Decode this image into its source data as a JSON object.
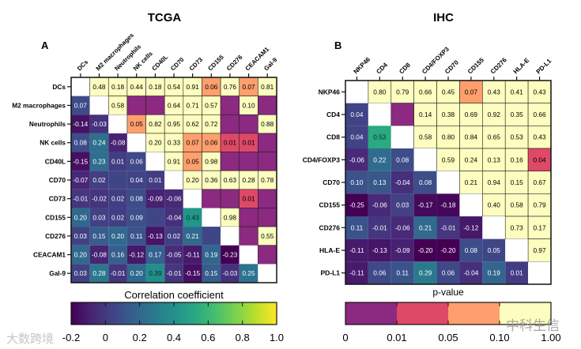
{
  "chart_data": [
    {
      "type": "heatmap",
      "panel": "A",
      "title": "TCGA",
      "labels": [
        "DCs",
        "M2 macrophages",
        "Neutrophils",
        "NK cells",
        "CD40L",
        "CD70",
        "CD73",
        "CD155",
        "CD276",
        "CEACAM1",
        "Gal-9"
      ],
      "lower_triangle": "correlation coefficient",
      "upper_triangle": "p-value",
      "matrix": [
        [
          null,
          "0.48",
          "0.18",
          "0.44",
          "0.18",
          "0.54",
          "0.91",
          "0.06",
          "0.76",
          "0.07",
          "0.81"
        ],
        [
          "0.07",
          null,
          "0.58",
          null,
          null,
          "0.64",
          "0.71",
          "0.57",
          null,
          "0.10",
          null
        ],
        [
          "-0.14",
          "-0.03",
          null,
          "0.05",
          "0.82",
          "0.95",
          "0.62",
          "0.72",
          null,
          null,
          "0.88"
        ],
        [
          "0.08",
          "0.24",
          "-0.08",
          null,
          "0.20",
          "0.33",
          "0.07",
          "0.06",
          "0.01",
          "0.01",
          null
        ],
        [
          "-0.15",
          "0.23",
          "0.01",
          "0.06",
          null,
          "0.91",
          "0.05",
          "0.98",
          null,
          null,
          null
        ],
        [
          "-0.07",
          "0.02",
          null,
          "0.04",
          "0.01",
          null,
          "0.20",
          "0.36",
          "0.63",
          "0.28",
          "0.78"
        ],
        [
          "-0.01",
          "-0.02",
          "0.02",
          "0.08",
          "-0.09",
          "-0.06",
          null,
          null,
          null,
          "0.01",
          null
        ],
        [
          "0.20",
          "0.03",
          "0.02",
          "0.09",
          null,
          "-0.04",
          "0.43",
          null,
          "0.98",
          null,
          null
        ],
        [
          "0.03",
          "0.15",
          "0.20",
          "0.11",
          "-0.13",
          "0.02",
          "0.21",
          null,
          null,
          null,
          "0.55"
        ],
        [
          "0.20",
          "-0.08",
          "0.16",
          "-0.12",
          "0.17",
          "-0.05",
          "-0.11",
          "0.19",
          "-0.23",
          null,
          null
        ],
        [
          "0.03",
          "0.28",
          "-0.01",
          "0.20",
          "0.39",
          "-0.01",
          "-0.15",
          "0.15",
          "-0.03",
          "0.25",
          null
        ]
      ],
      "colorbar": {
        "label": "Correlation coefficient",
        "range": [
          -0.2,
          1.0
        ],
        "ticks": [
          "-0.2",
          "0",
          "0.2",
          "0.4",
          "0.6",
          "0.8",
          "1.0"
        ]
      }
    },
    {
      "type": "heatmap",
      "panel": "B",
      "title": "IHC",
      "labels": [
        "NKP46",
        "CD4",
        "CD8",
        "CD4/FOXP3",
        "CD70",
        "CD155",
        "CD276",
        "HLA-E",
        "PD-L1"
      ],
      "lower_triangle": "correlation coefficient",
      "upper_triangle": "p-value",
      "matrix": [
        [
          null,
          "0.80",
          "0.79",
          "0.66",
          "0.45",
          "0.07",
          "0.43",
          "0.41",
          "0.43"
        ],
        [
          "0.04",
          null,
          null,
          "0.14",
          "0.38",
          "0.69",
          "0.92",
          "0.35",
          "0.66"
        ],
        [
          "0.04",
          "0.53",
          null,
          "0.58",
          "0.80",
          "0.84",
          "0.65",
          "0.53",
          "0.43"
        ],
        [
          "-0.06",
          "0.22",
          "0.08",
          null,
          "0.59",
          "0.24",
          "0.13",
          "0.16",
          "0.04"
        ],
        [
          "0.10",
          "0.13",
          "-0.04",
          "0.08",
          null,
          "0.21",
          "0.94",
          "0.15",
          "0.67"
        ],
        [
          "-0.25",
          "-0.06",
          "0.03",
          "-0.17",
          "-0.18",
          null,
          "0.40",
          "0.58",
          "0.79"
        ],
        [
          "0.11",
          "-0.01",
          "-0.06",
          "0.21",
          "-0.01",
          "-0.12",
          null,
          "0.73",
          "0.17"
        ],
        [
          "-0.11",
          "-0.13",
          "-0.09",
          "-0.20",
          "-0.20",
          "0.08",
          "0.05",
          null,
          "0.97"
        ],
        [
          "-0.11",
          "0.06",
          "0.11",
          "0.29",
          "0.06",
          "-0.04",
          "0.19",
          "0.01",
          null
        ]
      ],
      "colorbar": {
        "label": "p-value",
        "bins": [
          0,
          0.01,
          0.05,
          0.1,
          1.0
        ],
        "ticks": [
          "0",
          "0.01",
          "0.05",
          "0.10",
          "1.00"
        ],
        "colors": [
          "#8c2981",
          "#de4968",
          "#fe9f6d",
          "#fcfdbf"
        ]
      }
    }
  ],
  "colors": {
    "p_lt_001": "#8c2981",
    "p_001_005": "#de4968",
    "p_005_010": "#fe9f6d",
    "p_gt_010": "#fcfdbf",
    "diagonal": "#ffffff"
  },
  "watermarks": [
    "大数跨境",
    "中科生信"
  ]
}
